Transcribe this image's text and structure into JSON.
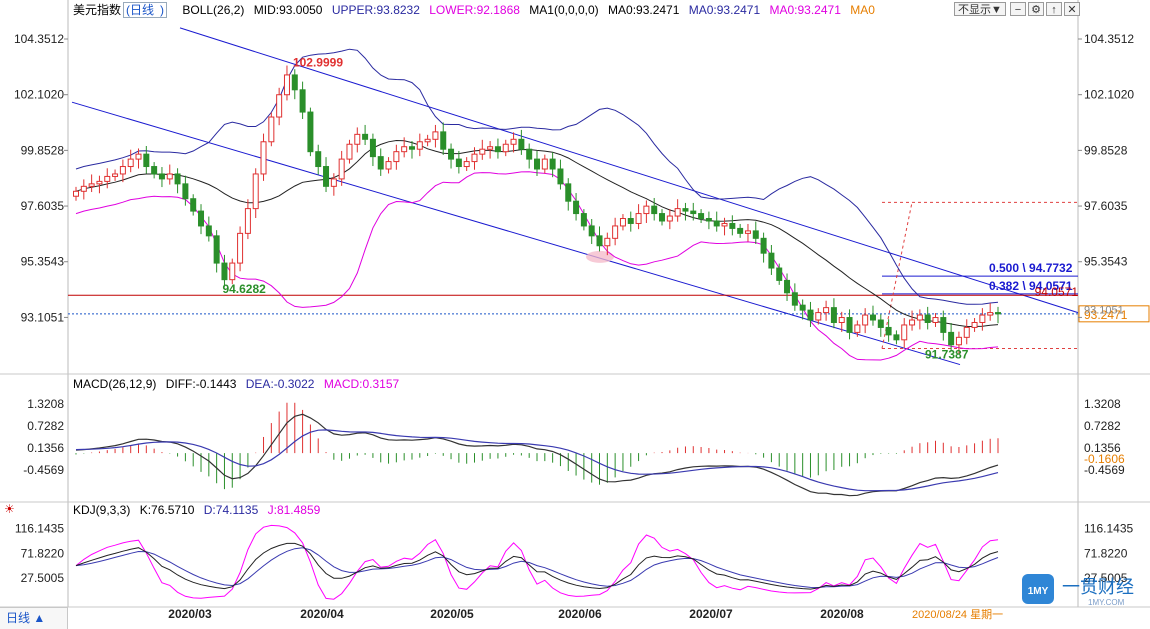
{
  "toolbar": {
    "period": "日线",
    "hide_button": "不显示▼",
    "bottom_period": "日线 ▲",
    "current_date": "2020/08/24 星期一"
  },
  "main_legend": {
    "name": "美元指数",
    "period": "日线",
    "boll": "BOLL(26,2)",
    "mid": "MID:93.0050",
    "upper": "UPPER:93.8232",
    "lower": "LOWER:92.1868",
    "ma1": "MA1(0,0,0,0)",
    "ma0a": "MA0:93.2471",
    "ma0b": "MA0:93.2471",
    "ma0c": "MA0:93.2471",
    "ma0d": "MA0"
  },
  "macd_legend": {
    "name": "MACD(26,12,9)",
    "diff": "DIFF:-0.1443",
    "dea": "DEA:-0.3022",
    "macd": "MACD:0.3157"
  },
  "kdj_legend": {
    "name": "KDJ(9,3,3)",
    "k": "K:76.5710",
    "d": "D:74.1135",
    "j": "J:81.4859"
  },
  "logo_text": "一贯财经",
  "logo_sub": "1MY.COM",
  "colors": {
    "up": "#e03030",
    "down": "#2a8f2a",
    "mid": "#222222",
    "upper": "#2a2aa0",
    "lower": "#e000e0",
    "channel": "#1a1ad0",
    "fib": "#1a1ad0",
    "red_line": "#c00000",
    "dashed_red": "#e04040",
    "price_dotted": "#1a55c8",
    "j_line": "#ff00ff",
    "axis_text": "#222222",
    "grid": "#d8d8d8"
  },
  "chart_data": [
    {
      "type": "candlestick",
      "title": "美元指数 日线",
      "ylim": [
        90.9,
        105.2
      ],
      "y_ticks": [
        "104.3512",
        "102.1020",
        "99.8528",
        "97.6035",
        "95.3543",
        "93.1051"
      ],
      "x_ticks": [
        "2020/03",
        "2020/04",
        "2020/05",
        "2020/06",
        "2020/07",
        "2020/08"
      ],
      "current_price": "93.2471",
      "current_axis_label": "93.1051",
      "annotations": {
        "high": "102.9999",
        "low_march": "94.6282",
        "low_august": "91.7387",
        "fib_0500": "0.500 \\ 94.7732",
        "fib_0382": "0.382 \\ 94.0571",
        "overlap_label": "94.0571"
      },
      "closes": [
        98.2,
        98.4,
        98.5,
        98.6,
        98.8,
        98.9,
        99.2,
        99.5,
        99.7,
        99.2,
        98.9,
        98.7,
        98.9,
        98.5,
        97.9,
        97.4,
        96.8,
        96.4,
        95.3,
        94.63,
        95.3,
        96.5,
        97.5,
        98.9,
        100.2,
        101.2,
        102.1,
        102.9,
        102.3,
        101.4,
        99.8,
        99.2,
        98.4,
        98.7,
        99.5,
        100.1,
        100.5,
        100.3,
        99.6,
        99.1,
        99.4,
        99.8,
        100.0,
        99.9,
        100.2,
        100.3,
        100.6,
        99.9,
        99.5,
        99.2,
        99.4,
        99.7,
        99.9,
        100.0,
        99.8,
        100.1,
        100.3,
        99.9,
        99.5,
        99.1,
        99.5,
        99.1,
        98.5,
        97.8,
        97.3,
        96.8,
        96.4,
        96.0,
        96.3,
        96.8,
        97.1,
        96.9,
        97.3,
        97.6,
        97.3,
        97.0,
        97.2,
        97.5,
        97.4,
        97.3,
        97.1,
        97.0,
        96.8,
        96.9,
        96.7,
        96.5,
        96.6,
        96.3,
        95.7,
        95.1,
        94.6,
        94.1,
        93.6,
        93.4,
        93.0,
        93.3,
        93.5,
        92.9,
        93.1,
        92.5,
        92.8,
        93.2,
        93.0,
        92.7,
        92.4,
        92.2,
        92.8,
        93.0,
        93.2,
        92.9,
        93.1,
        92.5,
        92.0,
        92.3,
        92.7,
        92.9,
        93.2,
        93.3,
        93.25
      ],
      "macd": {
        "y_ticks": [
          "1.3208",
          "0.7282",
          "0.1356",
          "-0.4569"
        ],
        "ylim": [
          -1.05,
          1.65
        ],
        "current_label": "-0.1606",
        "diff_last": -0.1443,
        "dea_last": -0.3022,
        "macd_last": 0.3157
      },
      "kdj": {
        "y_ticks": [
          "116.1435",
          "71.8220",
          "27.5005"
        ],
        "ylim": [
          -15,
          135
        ],
        "k_last": 76.571,
        "d_last": 74.1135,
        "j_last": 81.4859
      }
    }
  ]
}
